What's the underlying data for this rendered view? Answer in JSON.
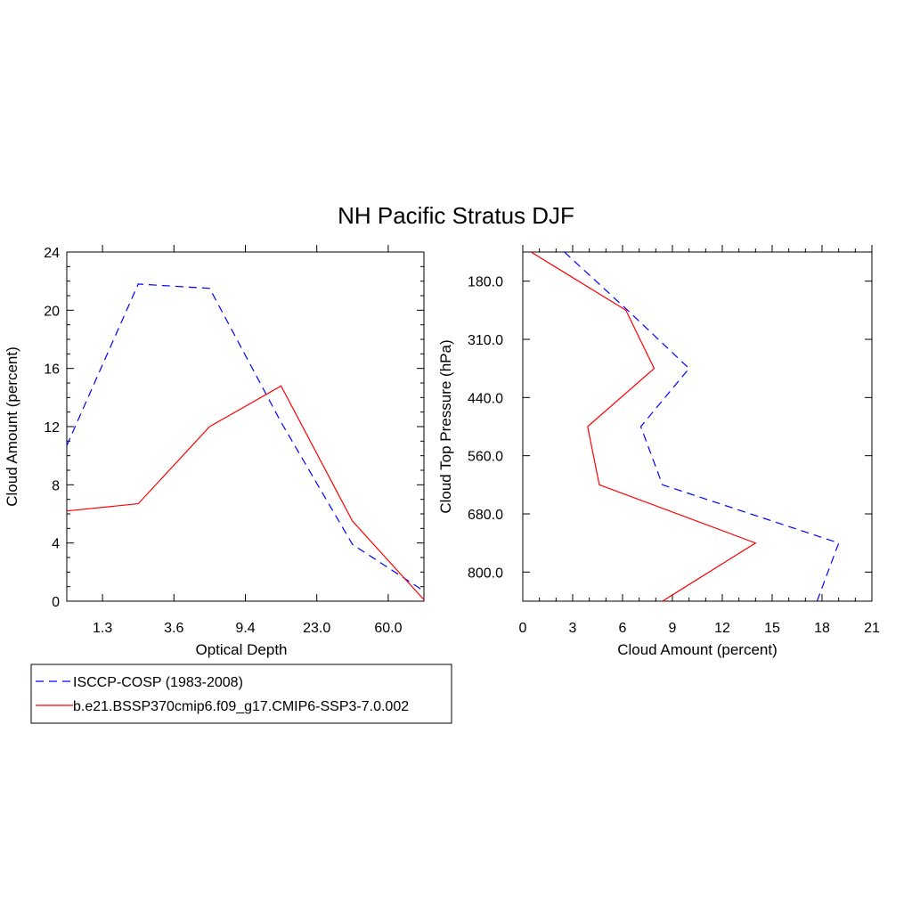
{
  "figure": {
    "title": "NH Pacific Stratus DJF"
  },
  "legend": {
    "items": [
      {
        "label": "ISCCP-COSP (1983-2008)",
        "color": "#0000ff",
        "dash": "dashed"
      },
      {
        "label": "b.e21.BSSP370cmip6.f09_g17.CMIP6-SSP3-7.0.002",
        "color": "#ff0000",
        "dash": "solid"
      }
    ]
  },
  "chart_data": [
    {
      "type": "line",
      "xlabel": "Optical Depth",
      "ylabel": "Cloud Amount (percent)",
      "categories": [
        "1.3",
        "3.6",
        "9.4",
        "23.0",
        "60.0"
      ],
      "ylim": [
        0,
        24
      ],
      "yticks": [
        "0",
        "4",
        "8",
        "12",
        "16",
        "20",
        "24"
      ],
      "series": [
        {
          "name": "ISCCP-COSP (1983-2008)",
          "x": [
            0,
            1,
            2,
            3,
            4,
            5
          ],
          "y": [
            10.7,
            21.8,
            21.5,
            12.3,
            3.9,
            0.7
          ]
        },
        {
          "name": "b.e21.BSSP370cmip6.f09_g17.CMIP6-SSP3-7.0.002",
          "x": [
            0,
            1,
            2,
            3,
            4,
            5
          ],
          "y": [
            6.2,
            6.7,
            12.0,
            14.8,
            5.5,
            0.1
          ]
        }
      ]
    },
    {
      "type": "line",
      "xlabel": "Cloud Amount (percent)",
      "ylabel": "Cloud Top Pressure (hPa)",
      "xlim": [
        0,
        21
      ],
      "xticks": [
        "0",
        "3",
        "6",
        "9",
        "12",
        "15",
        "18",
        "21"
      ],
      "categories": [
        "180.0",
        "310.0",
        "440.0",
        "560.0",
        "680.0",
        "800.0"
      ],
      "series": [
        {
          "name": "ISCCP-COSP (1983-2008)",
          "x": [
            2.5,
            6.3,
            10.0,
            7.1,
            8.4,
            19.0,
            17.7
          ],
          "y": [
            0,
            1,
            2,
            3,
            4,
            5,
            6
          ]
        },
        {
          "name": "b.e21.BSSP370cmip6.f09_g17.CMIP6-SSP3-7.0.002",
          "x": [
            0.5,
            6.2,
            7.9,
            3.9,
            4.6,
            14.0,
            8.4
          ],
          "y": [
            0,
            1,
            2,
            3,
            4,
            5,
            6
          ]
        }
      ]
    }
  ]
}
